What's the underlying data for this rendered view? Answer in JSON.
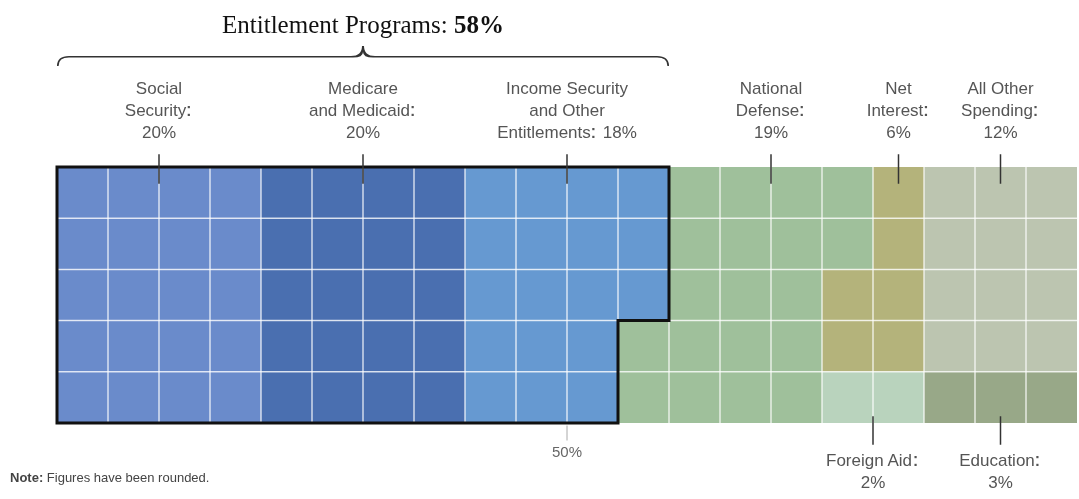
{
  "chart_data": {
    "type": "other",
    "categories": [
      "Social\nSecurity",
      "Medicare\nand Medicaid",
      "Income Security\nand Other\nEntitlements",
      "National\nDefense",
      "Net\nInterest",
      "All Other\nSpending",
      "Foreign Aid",
      "Education"
    ],
    "values": [
      20,
      20,
      18,
      19,
      6,
      12,
      2,
      3
    ],
    "value_labels": [
      "20%",
      "20%",
      "18%",
      "19%",
      "6%",
      "12%",
      "2%",
      "3%"
    ],
    "colors": [
      "#6a8bcb",
      "#4a6fb0",
      "#6699d1",
      "#9fc09b",
      "#b4b37b",
      "#bcc5b0",
      "#b9d3bd",
      "#98a888"
    ],
    "annotations": [
      "Entitlement Programs: 58%",
      "50%",
      "Note: Figures have been rounded."
    ]
  }
}
